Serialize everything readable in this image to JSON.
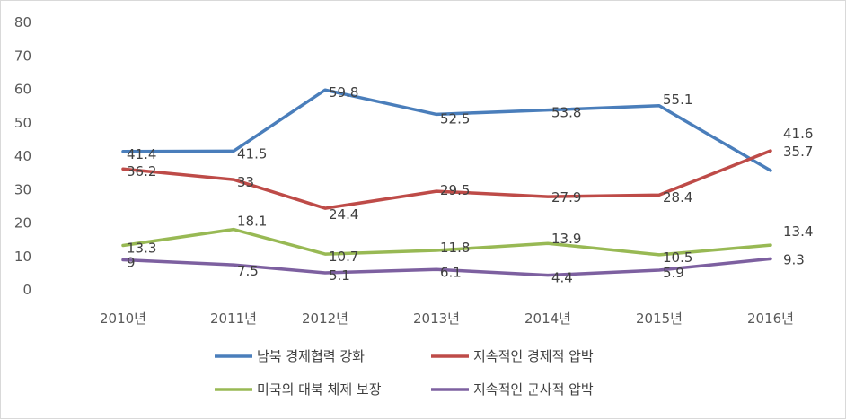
{
  "chart_data": {
    "type": "line",
    "categories": [
      "2010년",
      "2011년",
      "2012년",
      "2013년",
      "2014년",
      "2015년",
      "2016년"
    ],
    "ylim": [
      0,
      80
    ],
    "yticks": [
      0,
      10,
      20,
      30,
      40,
      50,
      60,
      70,
      80
    ],
    "grid": false,
    "legend": "bottom",
    "series": [
      {
        "name": "남북 경제협력 강화",
        "color": "#4a7ebb",
        "values": [
          41.4,
          41.5,
          59.8,
          52.5,
          53.8,
          55.1,
          35.7
        ],
        "labels": [
          "41.4",
          "41.5",
          "59.8",
          "52.5",
          "53.8",
          "55.1",
          "35.7"
        ]
      },
      {
        "name": "지속적인 경제적 압박",
        "color": "#be4b48",
        "values": [
          36.2,
          33,
          24.4,
          29.5,
          27.9,
          28.4,
          41.6
        ],
        "labels": [
          "36.2",
          "33",
          "24.4",
          "29.5",
          "27.9",
          "28.4",
          "41.6"
        ]
      },
      {
        "name": "미국의 대북 체제 보장",
        "color": "#98b954",
        "values": [
          13.3,
          18.1,
          10.7,
          11.8,
          13.9,
          10.5,
          13.4
        ],
        "labels": [
          "13.3",
          "18.1",
          "10.7",
          "11.8",
          "13.9",
          "10.5",
          "13.4"
        ]
      },
      {
        "name": "지속적인 군사적 압박",
        "color": "#7d60a0",
        "values": [
          9,
          7.5,
          5.1,
          6.1,
          4.4,
          5.9,
          9.3
        ],
        "labels": [
          "9",
          "7.5",
          "5.1",
          "6.1",
          "4.4",
          "5.9",
          "9.3"
        ]
      }
    ]
  }
}
